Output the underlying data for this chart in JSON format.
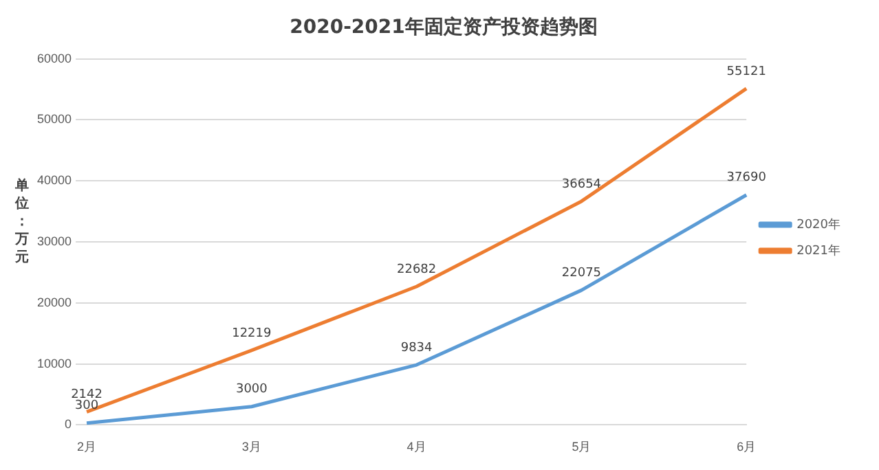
{
  "chart_data": {
    "type": "line",
    "title": "2020-2021年固定资产投资趋势图",
    "ylabel": "单位：万元",
    "categories": [
      "2月",
      "3月",
      "4月",
      "5月",
      "6月"
    ],
    "series": [
      {
        "name": "2020年",
        "color": "#5b9bd5",
        "values": [
          300,
          3000,
          9834,
          22075,
          37690
        ]
      },
      {
        "name": "2021年",
        "color": "#ed7d31",
        "values": [
          2142,
          12219,
          22682,
          36654,
          55121
        ]
      }
    ],
    "ylim": [
      0,
      60000
    ],
    "yticks": [
      0,
      10000,
      20000,
      30000,
      40000,
      50000,
      60000
    ],
    "grid": "y",
    "legend": "right",
    "data_labels": true,
    "marker": "none",
    "line_style": "solid"
  }
}
